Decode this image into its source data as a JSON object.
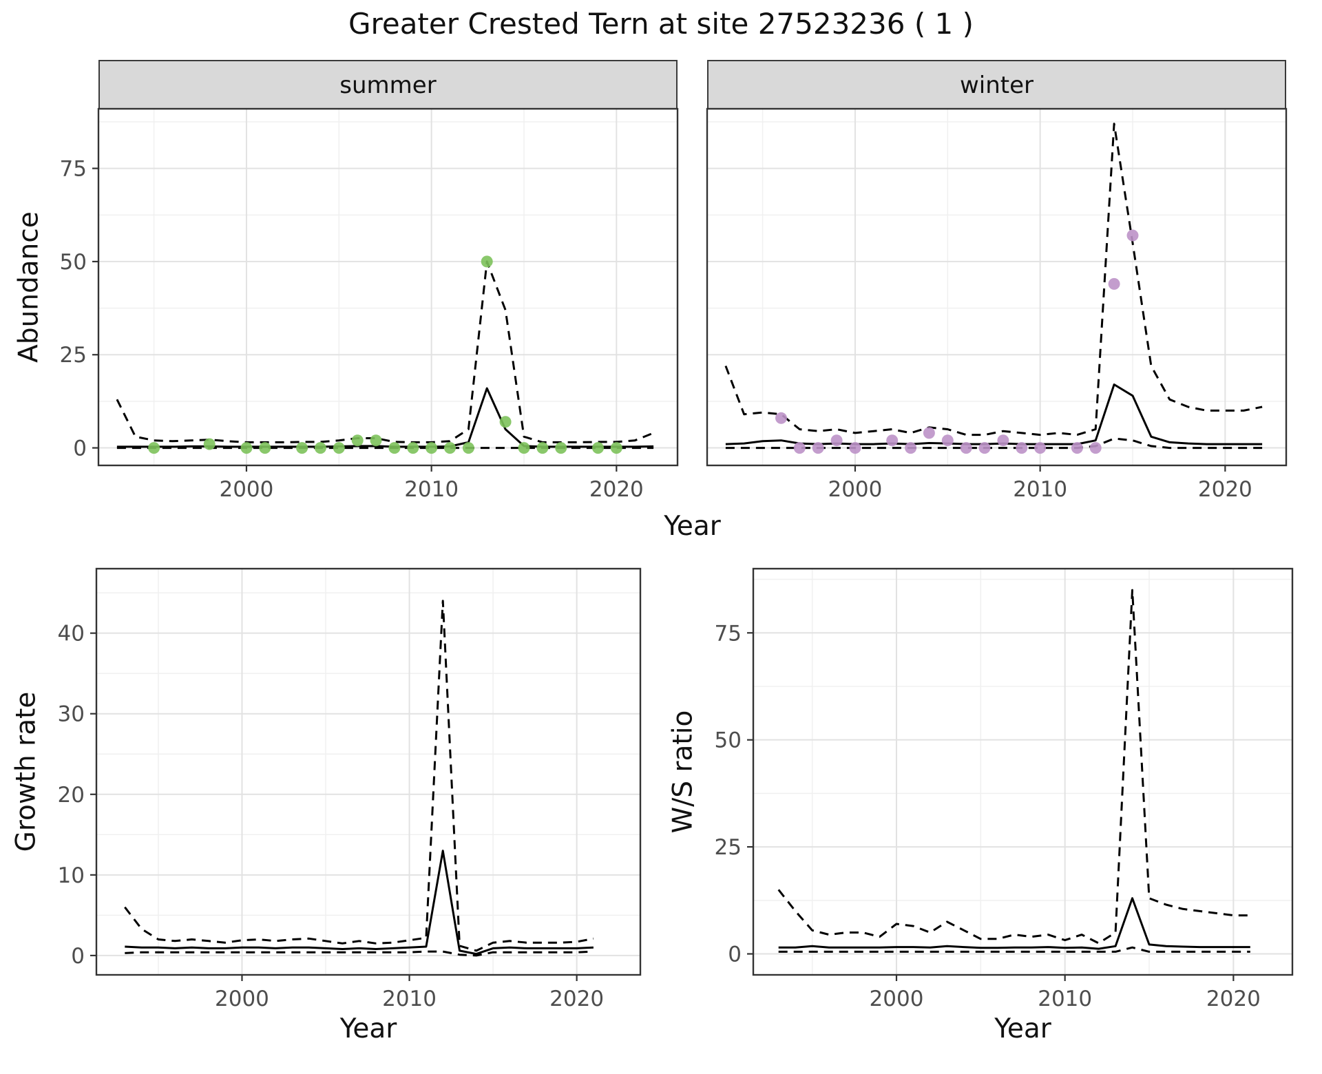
{
  "title": "Greater Crested Tern at site 27523236 ( 1 )",
  "colors": {
    "line": "#000000",
    "summer_points": "#7dc25b",
    "winter_points": "#bd92c8",
    "strip_bg": "#d9d9d9",
    "grid_major": "#e2e2e2",
    "grid_minor": "#f0f0f0",
    "panel_border": "#333333",
    "tick": "#333333",
    "tick_label": "#4d4d4d"
  },
  "axes": {
    "abundance_label": "Abundance",
    "year_label": "Year",
    "growth_label": "Growth rate",
    "ratio_label": "W/S ratio"
  },
  "facets": [
    {
      "label": "summer"
    },
    {
      "label": "winter"
    }
  ],
  "chart_data": [
    {
      "id": "summer",
      "type": "line",
      "facet": "summer",
      "xlabel": "Year",
      "ylabel": "Abundance",
      "xlim": [
        1992,
        2023.3
      ],
      "ylim": [
        -4.7,
        91
      ],
      "xticks": [
        2000,
        2010,
        2020
      ],
      "xticks_minor": [
        1995,
        2005,
        2015
      ],
      "yticks": [
        0,
        25,
        50,
        75
      ],
      "yticks_minor": [
        12.5,
        37.5,
        62.5,
        87.5
      ],
      "show_ytick_labels": true,
      "grid": true,
      "years": [
        1993,
        1994,
        1995,
        1996,
        1997,
        1998,
        1999,
        2000,
        2001,
        2002,
        2003,
        2004,
        2005,
        2006,
        2007,
        2008,
        2009,
        2010,
        2011,
        2012,
        2013,
        2014,
        2015,
        2016,
        2017,
        2018,
        2019,
        2020,
        2021,
        2022
      ],
      "series": [
        {
          "name": "upper-ci",
          "style": "dashed",
          "y": [
            13,
            3,
            2,
            1.8,
            2,
            2.2,
            1.8,
            1.5,
            1.5,
            1.5,
            1.6,
            1.6,
            2,
            2.6,
            2.6,
            1.6,
            1.5,
            1.5,
            1.8,
            5,
            50,
            37,
            3,
            1.5,
            1.5,
            1.5,
            1.6,
            1.6,
            2,
            4
          ]
        },
        {
          "name": "lower-ci",
          "style": "dashed",
          "y": [
            0,
            0,
            0,
            0,
            0,
            0,
            0,
            0,
            0,
            0,
            0,
            0,
            0,
            0,
            0,
            0,
            0,
            0,
            0,
            0,
            0,
            0,
            0,
            0,
            0,
            0,
            0,
            0,
            0,
            0
          ]
        },
        {
          "name": "model-fit",
          "style": "solid",
          "y": [
            0.3,
            0.3,
            0.3,
            0.3,
            0.4,
            0.4,
            0.3,
            0.3,
            0.3,
            0.3,
            0.3,
            0.3,
            0.4,
            0.5,
            0.5,
            0.3,
            0.3,
            0.3,
            0.4,
            1.5,
            16,
            5,
            0.5,
            0.3,
            0.3,
            0.3,
            0.3,
            0.3,
            0.3,
            0.4
          ]
        }
      ],
      "points": {
        "name": "observed-counts",
        "color": "#7dc25b",
        "x": [
          1995,
          1998,
          2000,
          2001,
          2003,
          2004,
          2005,
          2006,
          2007,
          2008,
          2009,
          2010,
          2011,
          2012,
          2013,
          2014,
          2015,
          2016,
          2017,
          2019,
          2020
        ],
        "y": [
          0,
          1,
          0,
          0,
          0,
          0,
          0,
          2,
          2,
          0,
          0,
          0,
          0,
          0,
          50,
          7,
          0,
          0,
          0,
          0,
          0
        ]
      }
    },
    {
      "id": "winter",
      "type": "line",
      "facet": "winter",
      "xlabel": "Year",
      "ylabel": "Abundance",
      "xlim": [
        1992,
        2023.3
      ],
      "ylim": [
        -4.7,
        91
      ],
      "xticks": [
        2000,
        2010,
        2020
      ],
      "xticks_minor": [
        1995,
        2005,
        2015
      ],
      "yticks": [
        0,
        25,
        50,
        75
      ],
      "yticks_minor": [
        12.5,
        37.5,
        62.5,
        87.5
      ],
      "show_ytick_labels": false,
      "grid": true,
      "years": [
        1993,
        1994,
        1995,
        1996,
        1997,
        1998,
        1999,
        2000,
        2001,
        2002,
        2003,
        2004,
        2005,
        2006,
        2007,
        2008,
        2009,
        2010,
        2011,
        2012,
        2013,
        2014,
        2015,
        2016,
        2017,
        2018,
        2019,
        2020,
        2021,
        2022
      ],
      "series": [
        {
          "name": "upper-ci",
          "style": "dashed",
          "y": [
            22,
            9,
            9.5,
            9,
            5,
            4.5,
            5,
            4,
            4.5,
            5,
            4,
            5.5,
            5,
            3.5,
            3.5,
            4.5,
            4,
            3.5,
            4,
            3.5,
            5,
            87,
            55,
            22,
            13,
            11,
            10,
            10,
            10,
            11
          ]
        },
        {
          "name": "lower-ci",
          "style": "dashed",
          "y": [
            0,
            0,
            0,
            0,
            0,
            0,
            0,
            0,
            0,
            0,
            0,
            0,
            0,
            0,
            0,
            0,
            0,
            0,
            0,
            0,
            0.5,
            2.5,
            2,
            0.5,
            0,
            0,
            0,
            0,
            0,
            0
          ]
        },
        {
          "name": "model-fit",
          "style": "solid",
          "y": [
            1,
            1.2,
            1.8,
            2,
            1.2,
            1,
            1.2,
            1,
            1,
            1.2,
            1,
            1.3,
            1.2,
            1,
            1,
            1.2,
            1,
            1,
            1,
            1,
            2,
            17,
            14,
            3,
            1.5,
            1.2,
            1,
            1,
            1,
            1
          ]
        }
      ],
      "points": {
        "name": "observed-counts",
        "color": "#bd92c8",
        "x": [
          1996,
          1997,
          1998,
          1999,
          2000,
          2002,
          2003,
          2004,
          2005,
          2006,
          2007,
          2008,
          2009,
          2010,
          2012,
          2013,
          2014,
          2015
        ],
        "y": [
          8,
          0,
          0,
          2,
          0,
          2,
          0,
          4,
          2,
          0,
          0,
          2,
          0,
          0,
          0,
          0,
          44,
          57
        ]
      }
    },
    {
      "id": "growth",
      "type": "line",
      "title": "Growth rate",
      "xlabel": "Year",
      "ylabel": "Growth rate",
      "xlim": [
        1991.3,
        2023.8
      ],
      "ylim": [
        -2.4,
        48
      ],
      "xticks": [
        2000,
        2010,
        2020
      ],
      "xticks_minor": [
        1995,
        2005,
        2015
      ],
      "yticks": [
        0,
        10,
        20,
        30,
        40
      ],
      "yticks_minor": [
        5,
        15,
        25,
        35,
        45
      ],
      "show_ytick_labels": true,
      "grid": true,
      "years": [
        1993,
        1994,
        1995,
        1996,
        1997,
        1998,
        1999,
        2000,
        2001,
        2002,
        2003,
        2004,
        2005,
        2006,
        2007,
        2008,
        2009,
        2010,
        2011,
        2012,
        2013,
        2014,
        2015,
        2016,
        2017,
        2018,
        2019,
        2020,
        2021
      ],
      "series": [
        {
          "name": "upper-ci",
          "style": "dashed",
          "y": [
            6,
            3.3,
            2,
            1.8,
            2,
            1.8,
            1.6,
            1.9,
            2,
            1.8,
            2,
            2.1,
            1.8,
            1.5,
            1.8,
            1.5,
            1.6,
            1.9,
            2.2,
            44,
            1.2,
            0.6,
            1.6,
            1.8,
            1.6,
            1.6,
            1.6,
            1.7,
            2.1
          ]
        },
        {
          "name": "lower-ci",
          "style": "dashed",
          "y": [
            0.3,
            0.4,
            0.4,
            0.4,
            0.4,
            0.4,
            0.4,
            0.4,
            0.4,
            0.4,
            0.4,
            0.4,
            0.4,
            0.4,
            0.4,
            0.4,
            0.4,
            0.4,
            0.5,
            0.5,
            0.1,
            0,
            0.4,
            0.4,
            0.4,
            0.4,
            0.4,
            0.4,
            0.5
          ]
        },
        {
          "name": "model-fit",
          "style": "solid",
          "y": [
            1.1,
            1,
            1,
            0.9,
            1,
            0.9,
            0.9,
            1,
            1,
            0.9,
            1,
            1,
            0.9,
            0.8,
            0.9,
            0.8,
            0.9,
            1,
            1.1,
            13,
            0.6,
            0.2,
            0.9,
            1,
            0.9,
            0.9,
            0.9,
            0.9,
            1
          ]
        }
      ]
    },
    {
      "id": "ratio",
      "type": "line",
      "title": "W/S ratio",
      "xlabel": "Year",
      "ylabel": "W/S ratio",
      "xlim": [
        1991.5,
        2023.5
      ],
      "ylim": [
        -4.9,
        90
      ],
      "xticks": [
        2000,
        2010,
        2020
      ],
      "xticks_minor": [
        1995,
        2005,
        2015
      ],
      "yticks": [
        0,
        25,
        50,
        75
      ],
      "yticks_minor": [
        12.5,
        37.5,
        62.5,
        87.5
      ],
      "show_ytick_labels": true,
      "grid": true,
      "years": [
        1993,
        1994,
        1995,
        1996,
        1997,
        1998,
        1999,
        2000,
        2001,
        2002,
        2003,
        2004,
        2005,
        2006,
        2007,
        2008,
        2009,
        2010,
        2011,
        2012,
        2013,
        2014,
        2015,
        2016,
        2017,
        2018,
        2019,
        2020,
        2021
      ],
      "series": [
        {
          "name": "upper-ci",
          "style": "dashed",
          "y": [
            15,
            10,
            5.5,
            4.5,
            5,
            5,
            4,
            7,
            6.5,
            5,
            7.5,
            5.5,
            3.5,
            3.5,
            4.5,
            4,
            4.5,
            3.2,
            4.5,
            2.5,
            5,
            85,
            13,
            11.5,
            10.5,
            10,
            9.5,
            9,
            9
          ]
        },
        {
          "name": "lower-ci",
          "style": "dashed",
          "y": [
            0.5,
            0.5,
            0.5,
            0.5,
            0.5,
            0.5,
            0.5,
            0.5,
            0.5,
            0.5,
            0.5,
            0.5,
            0.5,
            0.5,
            0.5,
            0.5,
            0.5,
            0.5,
            0.5,
            0.5,
            0.5,
            1.5,
            0.5,
            0.5,
            0.5,
            0.5,
            0.5,
            0.5,
            0.5
          ]
        },
        {
          "name": "model-fit",
          "style": "solid",
          "y": [
            1.5,
            1.5,
            1.8,
            1.5,
            1.5,
            1.5,
            1.5,
            1.6,
            1.6,
            1.5,
            1.8,
            1.6,
            1.4,
            1.4,
            1.5,
            1.5,
            1.6,
            1.4,
            1.5,
            1.2,
            1.8,
            13,
            2.2,
            1.8,
            1.7,
            1.6,
            1.6,
            1.6,
            1.6
          ]
        }
      ]
    }
  ]
}
